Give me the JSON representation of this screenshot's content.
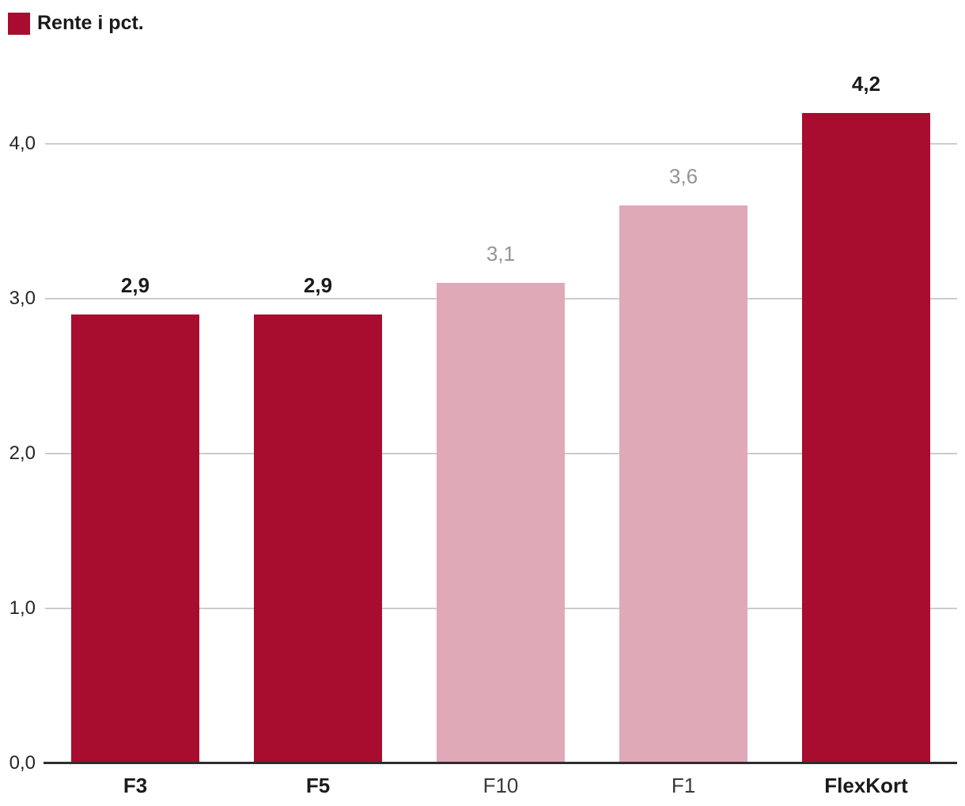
{
  "legend": {
    "label": "Rente i pct.",
    "swatch_color": "#a80c2f"
  },
  "chart_data": {
    "type": "bar",
    "title": "Rente i pct.",
    "categories": [
      "F3",
      "F5",
      "F10",
      "F1",
      "FlexKort"
    ],
    "values": [
      2.9,
      2.9,
      3.1,
      3.6,
      4.2
    ],
    "value_labels": [
      "2,9",
      "2,9",
      "3,1",
      "3,6",
      "4,2"
    ],
    "bar_colors": [
      "#a80c2f",
      "#a80c2f",
      "#e0a9b8",
      "#e0a9b8",
      "#a80c2f"
    ],
    "emphasized": [
      true,
      true,
      false,
      false,
      true
    ],
    "value_label_colors": [
      "#1a1a1a",
      "#1a1a1a",
      "#949494",
      "#949494",
      "#1a1a1a"
    ],
    "xlabel": "",
    "ylabel": "",
    "y_ticks": [
      "0,0",
      "1,0",
      "2,0",
      "3,0",
      "4,0"
    ],
    "y_tick_values": [
      0,
      1,
      2,
      3,
      4
    ],
    "ylim": [
      0,
      4.35
    ],
    "grid": true,
    "legend_position": "top-left",
    "accent_color": "#a80c2f",
    "muted_color": "#e0a9b8",
    "gridline_color": "#cccccc",
    "axis_line_color": "#2e2e2e"
  }
}
